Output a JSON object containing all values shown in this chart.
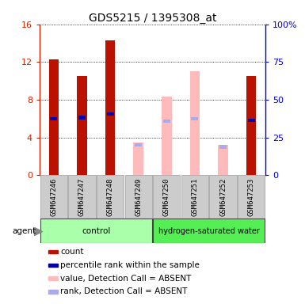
{
  "title": "GDS5215 / 1395308_at",
  "samples": [
    "GSM647246",
    "GSM647247",
    "GSM647248",
    "GSM647249",
    "GSM647250",
    "GSM647251",
    "GSM647252",
    "GSM647253"
  ],
  "groups": [
    "control",
    "control",
    "control",
    "control",
    "hydrogen-saturated water",
    "hydrogen-saturated water",
    "hydrogen-saturated water",
    "hydrogen-saturated water"
  ],
  "bar_values": [
    12.3,
    10.5,
    14.3,
    3.5,
    8.3,
    11.0,
    3.2,
    10.5
  ],
  "bar_absent": [
    false,
    false,
    false,
    true,
    true,
    true,
    true,
    false
  ],
  "rank_values": [
    6.0,
    6.1,
    6.5,
    3.2,
    5.7,
    6.0,
    3.0,
    5.8
  ],
  "ylim": [
    0,
    16
  ],
  "yticks_left": [
    0,
    4,
    8,
    12,
    16
  ],
  "yticks_right": [
    0,
    25,
    50,
    75,
    100
  ],
  "ytick_labels_right": [
    "0",
    "25",
    "50",
    "75",
    "100%"
  ],
  "bar_color_present": "#BB1100",
  "bar_color_absent": "#FFBBBB",
  "rank_color_present": "#0000BB",
  "rank_color_absent": "#AAAAEE",
  "group_color_control": "#AAFFAA",
  "group_color_hsw": "#55EE55",
  "bar_width": 0.35,
  "rank_bar_width": 0.25,
  "rank_bar_height": 0.35,
  "legend_items": [
    {
      "label": "count",
      "color": "#BB1100"
    },
    {
      "label": "percentile rank within the sample",
      "color": "#0000BB"
    },
    {
      "label": "value, Detection Call = ABSENT",
      "color": "#FFBBBB"
    },
    {
      "label": "rank, Detection Call = ABSENT",
      "color": "#AAAAEE"
    }
  ],
  "agent_label": "agent",
  "background_color": "#FFFFFF"
}
